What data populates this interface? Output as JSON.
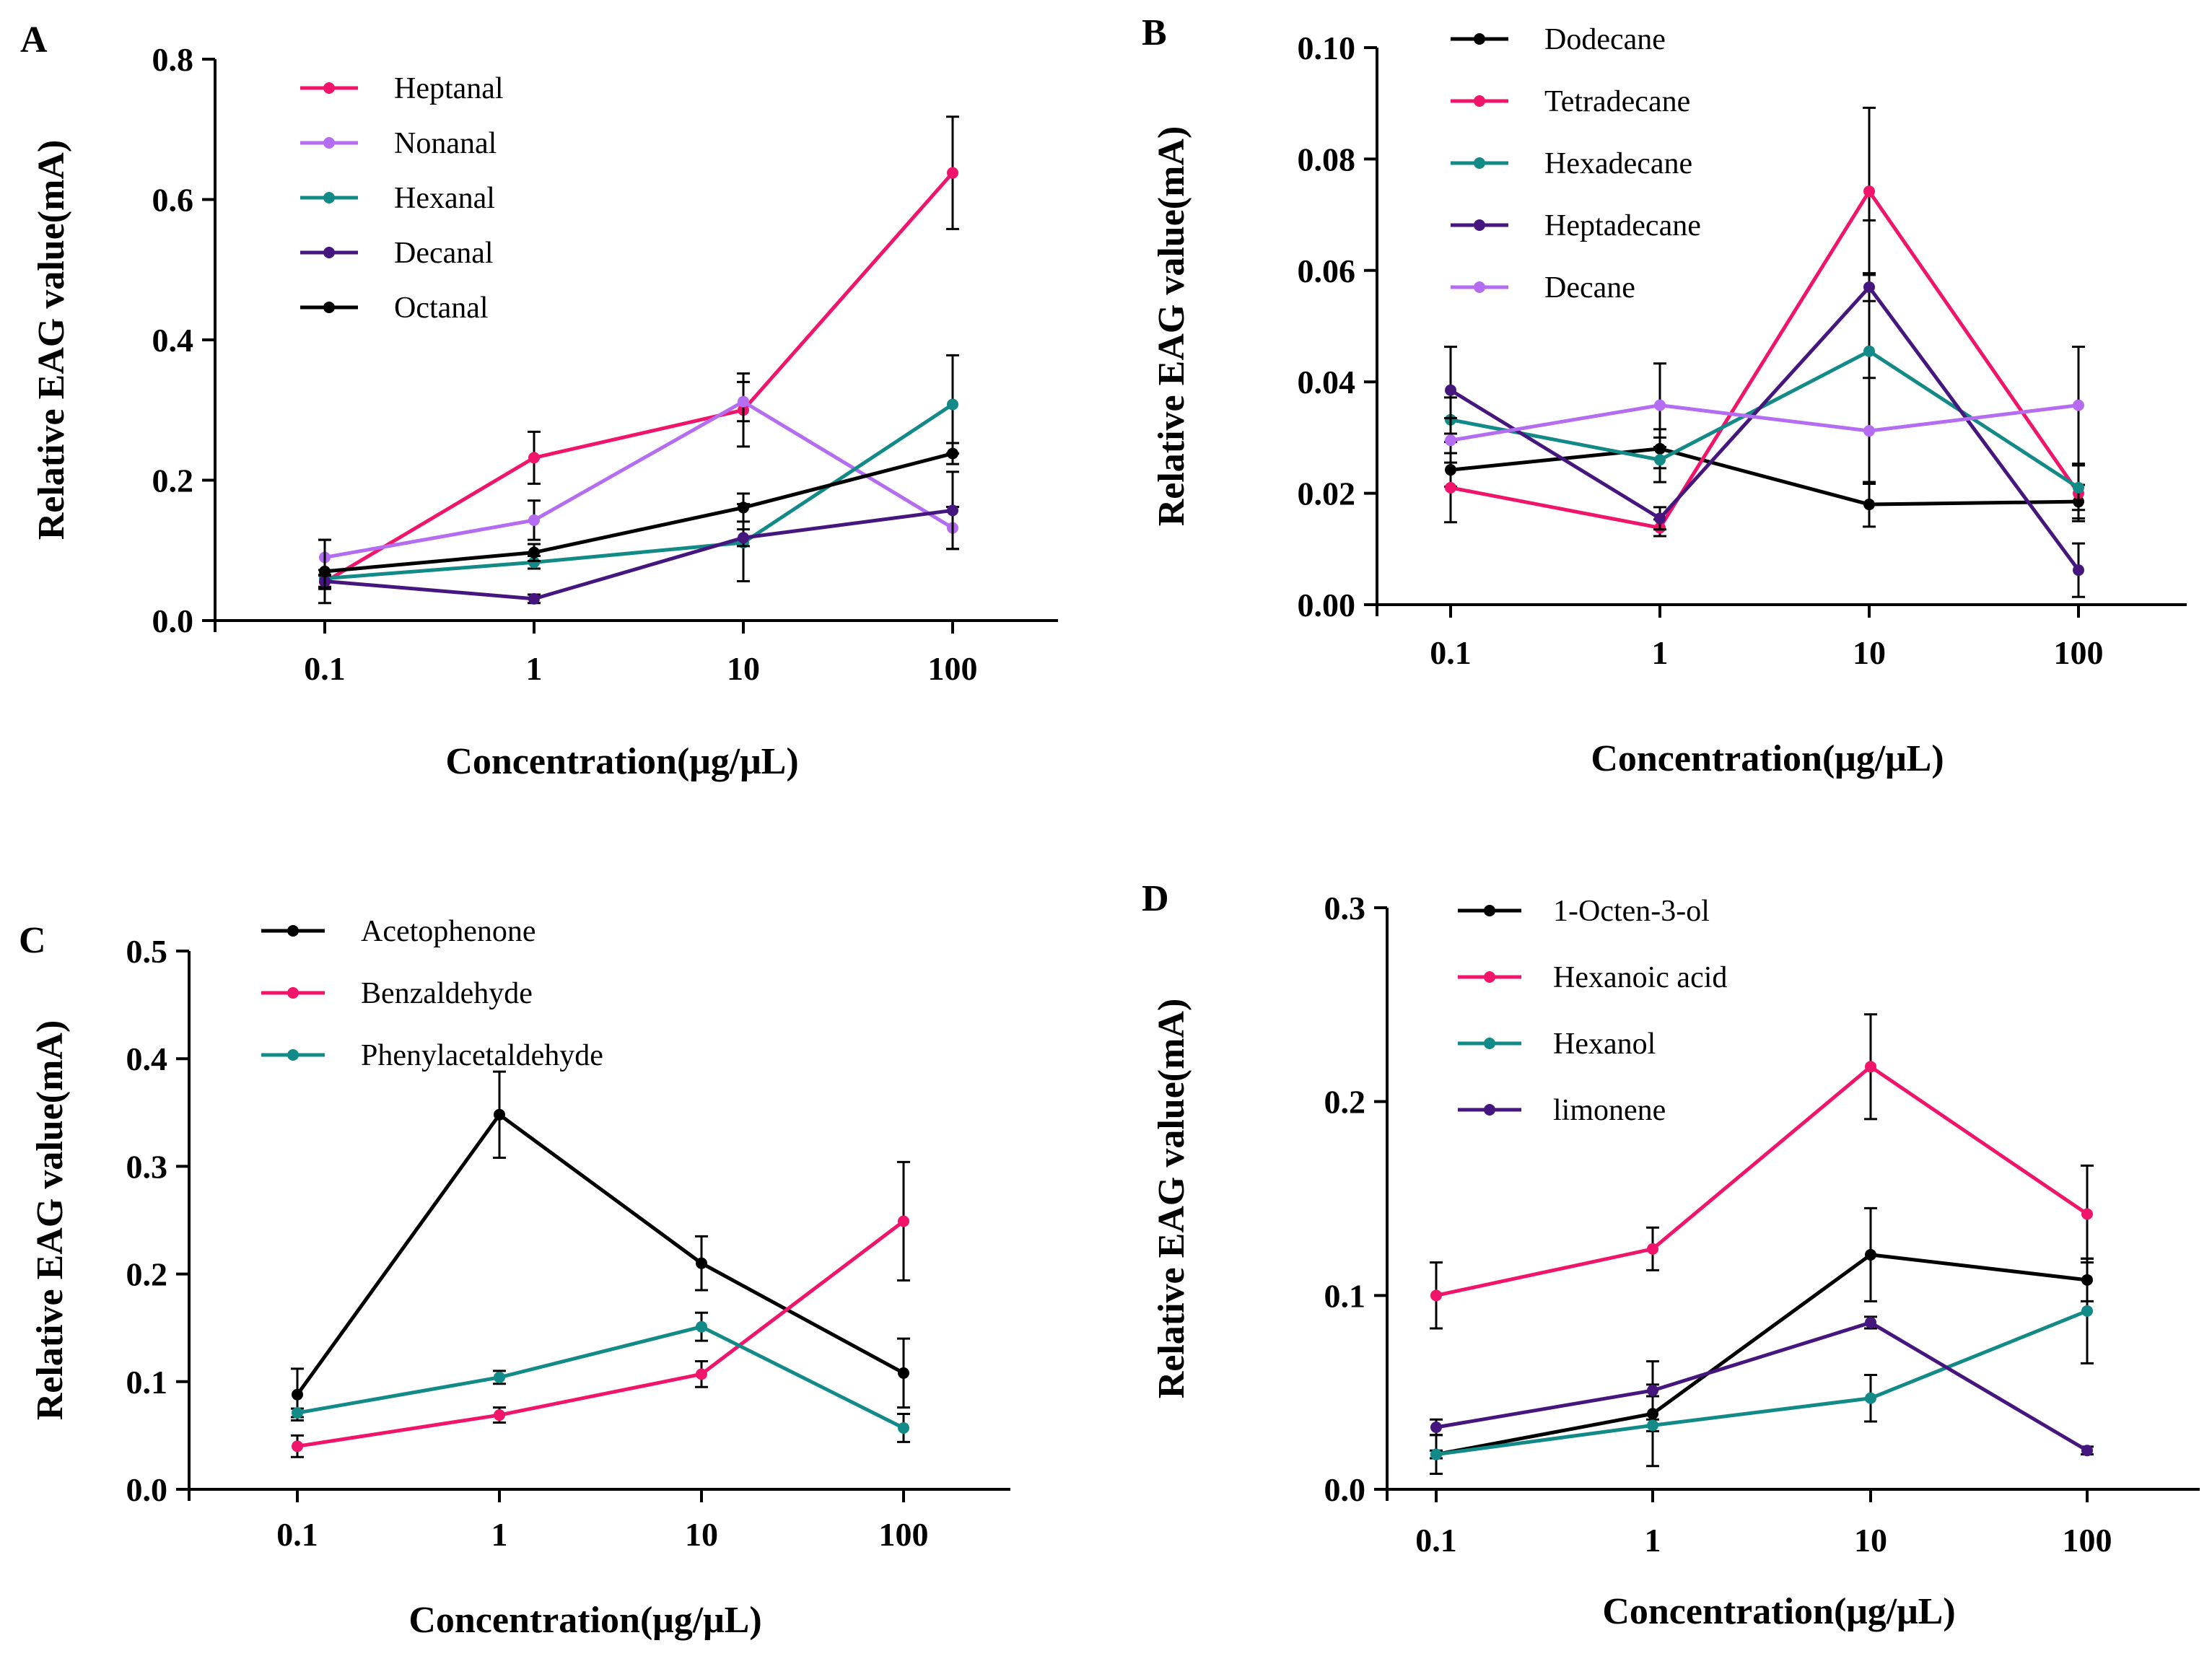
{
  "chart_data": [
    {
      "panel": "A",
      "type": "line",
      "x": [
        "0.1",
        "1",
        "10",
        "100"
      ],
      "xlabel": "Concentration(μg/μL)",
      "ylabel": "Relative EAG value(mA)",
      "ylim": [
        0,
        0.8
      ],
      "yticks": [
        "0.0",
        "0.2",
        "0.4",
        "0.6",
        "0.8"
      ],
      "legend_position": "top-left",
      "series": [
        {
          "name": "Heptanal",
          "color": "#f0156a",
          "values": [
            0.055,
            0.232,
            0.3,
            0.638
          ],
          "errors": [
            0.01,
            0.037,
            0.052,
            0.08
          ]
        },
        {
          "name": "Nonanal",
          "color": "#b46cf0",
          "values": [
            0.09,
            0.143,
            0.312,
            0.132
          ],
          "errors": [
            0.025,
            0.028,
            0.028,
            0.03
          ]
        },
        {
          "name": "Hexanal",
          "color": "#128a87",
          "values": [
            0.06,
            0.083,
            0.111,
            0.308
          ],
          "errors": [
            0.012,
            0.009,
            0.055,
            0.07
          ]
        },
        {
          "name": "Decanal",
          "color": "#46167f",
          "values": [
            0.056,
            0.031,
            0.118,
            0.157
          ],
          "errors": [
            0.008,
            0.006,
            0.012,
            0.055
          ]
        },
        {
          "name": "Octanal",
          "color": "#000000",
          "values": [
            0.07,
            0.097,
            0.161,
            0.238
          ],
          "errors": [
            0.045,
            0.012,
            0.02,
            0.015
          ]
        }
      ]
    },
    {
      "panel": "B",
      "type": "line",
      "x": [
        "0.1",
        "1",
        "10",
        "100"
      ],
      "xlabel": "Concentration(μg/μL)",
      "ylabel": "Relative EAG value(mA)",
      "ylim": [
        0,
        0.1
      ],
      "yticks": [
        "0.00",
        "0.02",
        "0.04",
        "0.06",
        "0.08",
        "0.10"
      ],
      "legend_position": "top-left",
      "series": [
        {
          "name": "Dodecane",
          "color": "#000000",
          "values": [
            0.0242,
            0.028,
            0.018,
            0.0185
          ],
          "errors": [
            0.003,
            0.0035,
            0.004,
            0.003
          ]
        },
        {
          "name": "Tetradecane",
          "color": "#f0156a",
          "values": [
            0.021,
            0.0138,
            0.0742,
            0.02
          ],
          "errors": [
            0.0062,
            0.0015,
            0.015,
            0.005
          ]
        },
        {
          "name": "Hexadecane",
          "color": "#128a87",
          "values": [
            0.0332,
            0.026,
            0.0455,
            0.021
          ],
          "errors": [
            0.004,
            0.004,
            0.0235,
            0.004
          ]
        },
        {
          "name": "Heptadecane",
          "color": "#46167f",
          "values": [
            0.0385,
            0.0155,
            0.057,
            0.0062
          ],
          "errors": [
            0.0078,
            0.002,
            0.0025,
            0.0048
          ]
        },
        {
          "name": "Decane",
          "color": "#b46cf0",
          "values": [
            0.0295,
            0.0358,
            0.0312,
            0.0358
          ],
          "errors": [
            0.004,
            0.0075,
            0.0095,
            0.0105
          ]
        }
      ]
    },
    {
      "panel": "C",
      "type": "line",
      "x": [
        "0.1",
        "1",
        "10",
        "100"
      ],
      "xlabel": "Concentration(μg/μL)",
      "ylabel": "Relative EAG value(mA)",
      "ylim": [
        0,
        0.5
      ],
      "yticks": [
        "0.0",
        "0.1",
        "0.2",
        "0.3",
        "0.4",
        "0.5"
      ],
      "legend_position": "top-left",
      "series": [
        {
          "name": "Acetophenone",
          "color": "#000000",
          "values": [
            0.088,
            0.348,
            0.21,
            0.108
          ],
          "errors": [
            0.024,
            0.04,
            0.025,
            0.032
          ]
        },
        {
          "name": "Benzaldehyde",
          "color": "#f0156a",
          "values": [
            0.04,
            0.069,
            0.107,
            0.249
          ],
          "errors": [
            0.01,
            0.007,
            0.012,
            0.055
          ]
        },
        {
          "name": "Phenylacetaldehyde",
          "color": "#128a87",
          "values": [
            0.071,
            0.104,
            0.151,
            0.057
          ],
          "errors": [
            0.004,
            0.006,
            0.013,
            0.013
          ]
        }
      ]
    },
    {
      "panel": "D",
      "type": "line",
      "x": [
        "0.1",
        "1",
        "10",
        "100"
      ],
      "xlabel": "Concentration(μg/μL)",
      "ylabel": "Relative EAG value(mA)",
      "ylim": [
        0,
        0.3
      ],
      "yticks": [
        "0.0",
        "0.1",
        "0.2",
        "0.3"
      ],
      "legend_position": "top-left",
      "series": [
        {
          "name": "1-Octen-3-ol",
          "color": "#000000",
          "values": [
            0.018,
            0.039,
            0.121,
            0.108
          ],
          "errors": [
            0.01,
            0.027,
            0.024,
            0.011
          ]
        },
        {
          "name": "Hexanoic acid",
          "color": "#f0156a",
          "values": [
            0.1,
            0.124,
            0.218,
            0.142
          ],
          "errors": [
            0.017,
            0.011,
            0.027,
            0.025
          ]
        },
        {
          "name": "Hexanol",
          "color": "#128a87",
          "values": [
            0.018,
            0.033,
            0.047,
            0.092
          ],
          "errors": [
            0.002,
            0.003,
            0.012,
            0.027
          ]
        },
        {
          "name": "limonene",
          "color": "#46167f",
          "values": [
            0.032,
            0.051,
            0.086,
            0.02
          ],
          "errors": [
            0.004,
            0.003,
            0.003,
            0.002
          ]
        }
      ]
    }
  ]
}
